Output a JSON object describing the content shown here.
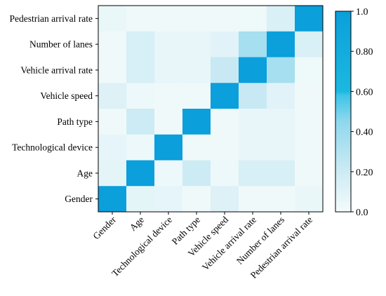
{
  "chart_data": {
    "type": "heatmap",
    "title": "",
    "xlabel": "",
    "ylabel": "",
    "x_categories": [
      "Gender",
      "Age",
      "Technological device",
      "Path type",
      "Vehicle speed",
      "Vehicle arrival rate",
      "Number of lanes",
      "Pedestrian arrival rate"
    ],
    "y_categories": [
      "Pedestrian arrival rate",
      "Number of lanes",
      "Vehicle arrival rate",
      "Vehicle speed",
      "Path type",
      "Technological device",
      "Age",
      "Gender"
    ],
    "values": [
      [
        0.05,
        0.02,
        0.02,
        0.02,
        0.02,
        0.03,
        0.14,
        1.0
      ],
      [
        0.02,
        0.15,
        0.06,
        0.06,
        0.1,
        0.36,
        1.0,
        0.14
      ],
      [
        0.02,
        0.15,
        0.06,
        0.06,
        0.22,
        1.0,
        0.36,
        0.03
      ],
      [
        0.12,
        0.04,
        0.02,
        0.02,
        1.0,
        0.22,
        0.1,
        0.02
      ],
      [
        0.02,
        0.2,
        0.02,
        1.0,
        0.02,
        0.06,
        0.06,
        0.02
      ],
      [
        0.07,
        0.04,
        1.0,
        0.02,
        0.02,
        0.06,
        0.06,
        0.02
      ],
      [
        0.08,
        1.0,
        0.04,
        0.2,
        0.04,
        0.15,
        0.15,
        0.02
      ],
      [
        1.0,
        0.08,
        0.07,
        0.02,
        0.12,
        0.02,
        0.02,
        0.05
      ]
    ],
    "colorbar": {
      "range": [
        0.0,
        1.0
      ],
      "ticks": [
        0.0,
        0.2,
        0.4,
        0.6,
        0.8,
        1.0
      ],
      "tick_labels": [
        "0.0",
        "0.20",
        "0.40",
        "0.60",
        "0.80",
        "1.0"
      ],
      "color_low": "#f4fbfb",
      "color_high": "#0b9fdb"
    },
    "grid": false,
    "legend": "none"
  }
}
